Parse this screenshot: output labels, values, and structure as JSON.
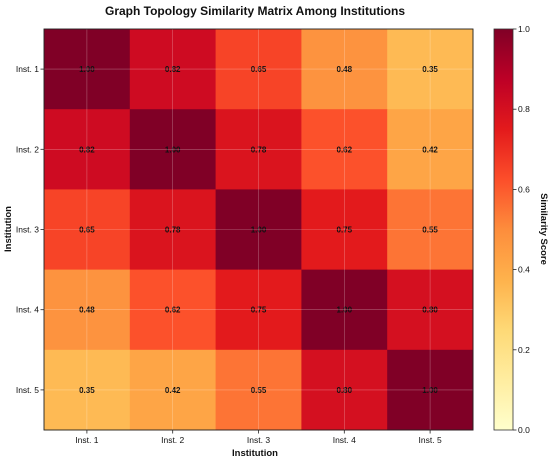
{
  "chart_data": {
    "type": "heatmap",
    "title": "Graph Topology Similarity Matrix Among Institutions",
    "xlabel": "Institution",
    "ylabel": "Institution",
    "x_categories": [
      "Inst. 1",
      "Inst. 2",
      "Inst. 3",
      "Inst. 4",
      "Inst. 5"
    ],
    "y_categories": [
      "Inst. 1",
      "Inst. 2",
      "Inst. 3",
      "Inst. 4",
      "Inst. 5"
    ],
    "values": [
      [
        1.0,
        0.82,
        0.65,
        0.48,
        0.35
      ],
      [
        0.82,
        1.0,
        0.78,
        0.62,
        0.42
      ],
      [
        0.65,
        0.78,
        1.0,
        0.75,
        0.55
      ],
      [
        0.48,
        0.62,
        0.75,
        1.0,
        0.8
      ],
      [
        0.35,
        0.42,
        0.55,
        0.8,
        1.0
      ]
    ],
    "value_labels": [
      [
        "1.00",
        "0.82",
        "0.65",
        "0.48",
        "0.35"
      ],
      [
        "0.82",
        "1.00",
        "0.78",
        "0.62",
        "0.42"
      ],
      [
        "0.65",
        "0.78",
        "1.00",
        "0.75",
        "0.55"
      ],
      [
        "0.48",
        "0.62",
        "0.75",
        "1.00",
        "0.80"
      ],
      [
        "0.35",
        "0.42",
        "0.55",
        "0.80",
        "1.00"
      ]
    ],
    "colorbar": {
      "label": "Similarity Score",
      "range": [
        0,
        1
      ],
      "ticks": [
        "0.0",
        "0.2",
        "0.4",
        "0.6",
        "0.8",
        "1.0"
      ],
      "colormap": "YlOrRd"
    },
    "grid": true
  }
}
